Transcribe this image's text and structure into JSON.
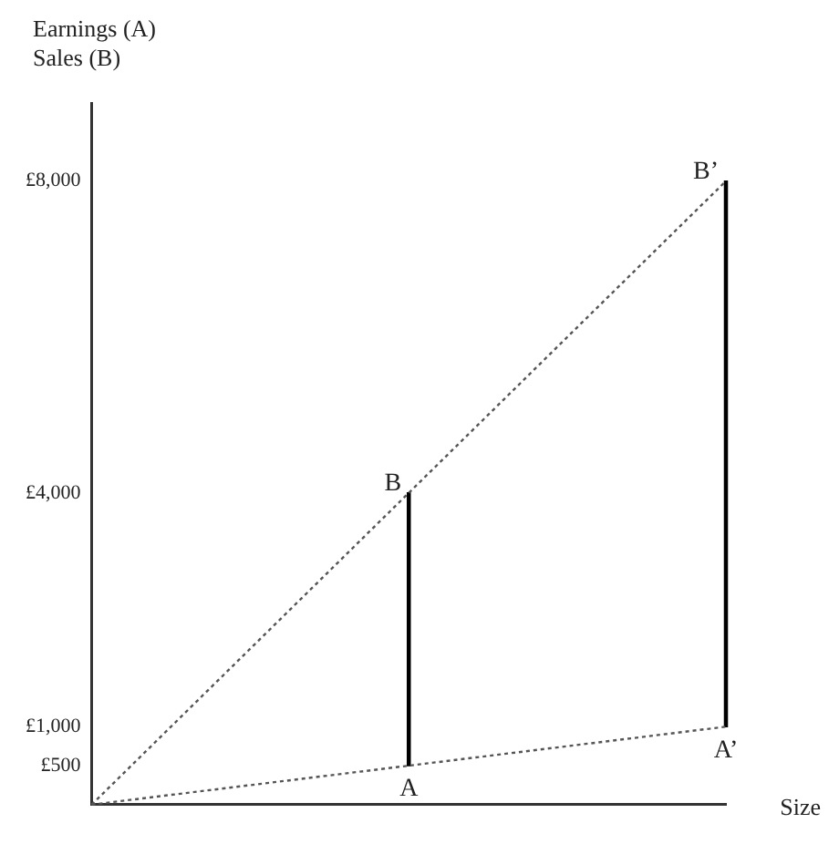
{
  "chart_data": {
    "type": "line",
    "xlabel": "Size",
    "ylabel": "Earnings (A)\nSales (B)",
    "categories": [
      null,
      null,
      null
    ],
    "series": [
      {
        "color": "#555555",
        "values": [
          0,
          4000,
          8000
        ],
        "value_labels": [
          null,
          "B",
          "B’"
        ],
        "line_style": "dotted",
        "marker": "none"
      },
      {
        "color": "#555555",
        "values": [
          0,
          500,
          1000
        ],
        "value_labels": [
          null,
          "A",
          "A’"
        ],
        "line_style": "dotted",
        "marker": "none"
      },
      {
        "type": "bar",
        "color": "#000000",
        "values": [
          null,
          3500,
          7000
        ],
        "base": [
          null,
          500,
          1000
        ]
      }
    ],
    "ylim": [
      0,
      9000
    ],
    "yticks": [
      {
        "value": 500,
        "label": "£500"
      },
      {
        "value": 1000,
        "label": "£1,000"
      },
      {
        "value": 4000,
        "label": "£4,000"
      },
      {
        "value": 8000,
        "label": "£8,000"
      }
    ],
    "tick_labels": "y",
    "grid": false,
    "legend": false
  }
}
